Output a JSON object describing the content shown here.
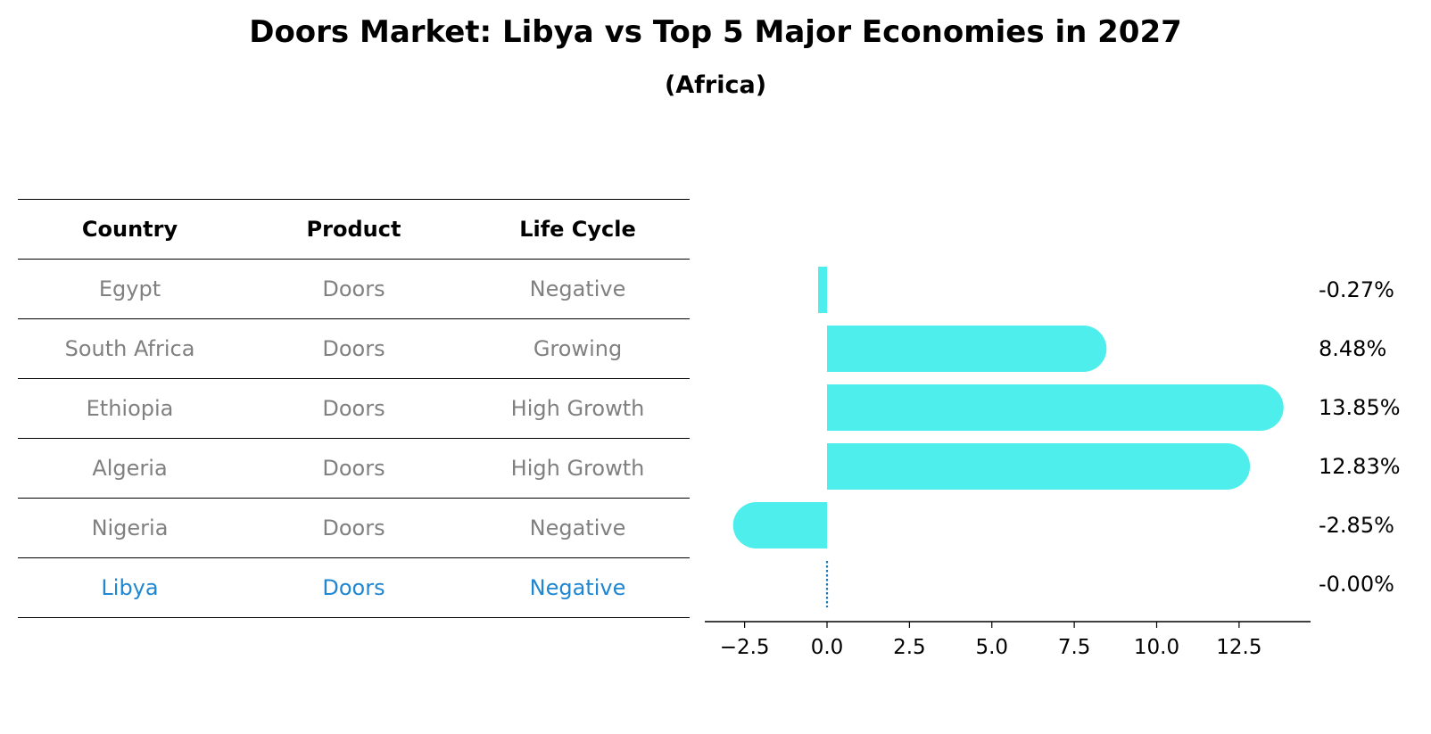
{
  "title": "Doors Market: Libya vs Top 5 Major Economies in 2027",
  "subtitle": "(Africa)",
  "table": {
    "headers": [
      "Country",
      "Product",
      "Life Cycle"
    ],
    "rows": [
      {
        "country": "Egypt",
        "product": "Doors",
        "life_cycle": "Negative"
      },
      {
        "country": "South Africa",
        "product": "Doors",
        "life_cycle": "Growing"
      },
      {
        "country": "Ethiopia",
        "product": "Doors",
        "life_cycle": "High Growth"
      },
      {
        "country": "Algeria",
        "product": "Doors",
        "life_cycle": "High Growth"
      },
      {
        "country": "Nigeria",
        "product": "Doors",
        "life_cycle": "Negative"
      },
      {
        "country": "Libya",
        "product": "Doors",
        "life_cycle": "Negative"
      }
    ],
    "highlight_color": "#1f86d1",
    "text_color": "#808080"
  },
  "chart_data": {
    "type": "bar",
    "orientation": "horizontal",
    "categories": [
      "Egypt",
      "South Africa",
      "Ethiopia",
      "Algeria",
      "Nigeria",
      "Libya"
    ],
    "values": [
      -0.27,
      8.48,
      13.85,
      12.83,
      -2.85,
      -0.0
    ],
    "value_labels": [
      "-0.27%",
      "8.48%",
      "13.85%",
      "12.83%",
      "-2.85%",
      "-0.00%"
    ],
    "xticks": [
      "−2.5",
      "0.0",
      "2.5",
      "5.0",
      "7.5",
      "10.0",
      "12.5"
    ],
    "xtick_values": [
      -2.5,
      0.0,
      2.5,
      5.0,
      7.5,
      10.0,
      12.5
    ],
    "xlim": [
      -3.7,
      14.7
    ],
    "bar_color": "#4eeeec",
    "zero_line_color": "#1f77b4"
  }
}
